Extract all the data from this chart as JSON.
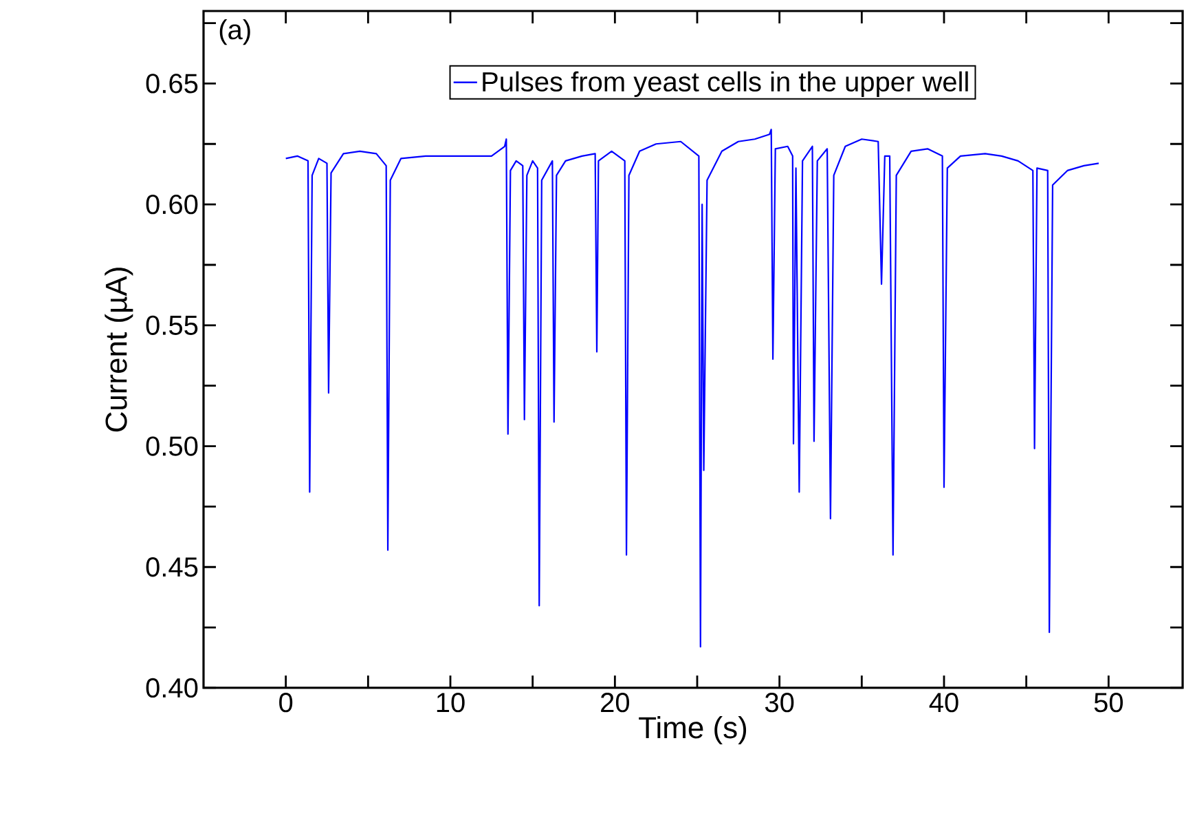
{
  "chart_data": {
    "type": "line",
    "xlabel": "Time (s)",
    "ylabel": "Current (µA)",
    "annotations": [
      "(a)"
    ],
    "xlim": [
      -5,
      54.5
    ],
    "ylim": [
      0.4,
      0.68
    ],
    "xticks": [
      0,
      {
        "value": 5,
        "label": null
      },
      10,
      {
        "value": 15,
        "label": null
      },
      20,
      {
        "value": 25,
        "label": null
      },
      30,
      {
        "value": 35,
        "label": null
      },
      40,
      {
        "value": 45,
        "label": null
      },
      50
    ],
    "yticks": [
      {
        "value": 0.4,
        "label": "0.40"
      },
      {
        "value": 0.425,
        "label": null
      },
      {
        "value": 0.45,
        "label": "0.45"
      },
      {
        "value": 0.475,
        "label": null
      },
      {
        "value": 0.5,
        "label": "0.50"
      },
      {
        "value": 0.525,
        "label": null
      },
      {
        "value": 0.55,
        "label": "0.55"
      },
      {
        "value": 0.575,
        "label": null
      },
      {
        "value": 0.6,
        "label": "0.60"
      },
      {
        "value": 0.625,
        "label": null
      },
      {
        "value": 0.65,
        "label": "0.65"
      },
      {
        "value": 0.675,
        "label": null
      }
    ],
    "grid": false,
    "legend": "top",
    "marker": "none",
    "line_style": "solid",
    "series": [
      {
        "name": "Pulses from yeast cells in  the upper well",
        "color": "#0000ff",
        "x": [
          0,
          0.7,
          1.35,
          1.45,
          1.6,
          2.0,
          2.5,
          2.6,
          2.75,
          3.5,
          4.5,
          5.5,
          6.1,
          6.2,
          6.35,
          7,
          8.5,
          10,
          11.5,
          12.5,
          13.3,
          13.4,
          13.5,
          13.65,
          14.0,
          14.4,
          14.5,
          14.65,
          15.0,
          15.3,
          15.4,
          15.55,
          16.2,
          16.3,
          16.45,
          17,
          18,
          18.8,
          18.9,
          19.0,
          19.8,
          20.6,
          20.7,
          20.85,
          21.5,
          22.5,
          24,
          25.1,
          25.2,
          25.3,
          25.4,
          25.6,
          26.5,
          27.5,
          28.5,
          29.4,
          29.5,
          29.6,
          29.75,
          30.5,
          30.8,
          30.85,
          31.0,
          31.2,
          31.4,
          32.0,
          32.1,
          32.3,
          32.9,
          33.1,
          33.3,
          34,
          35,
          36.0,
          36.2,
          36.4,
          36.7,
          36.9,
          37.1,
          38,
          39,
          39.9,
          40.0,
          40.2,
          41,
          42.5,
          43.5,
          44.5,
          45.4,
          45.5,
          45.65,
          46.3,
          46.4,
          46.6,
          47.5,
          48.5,
          49.4
        ],
        "values": [
          0.619,
          0.62,
          0.618,
          0.481,
          0.612,
          0.619,
          0.617,
          0.522,
          0.613,
          0.621,
          0.622,
          0.621,
          0.616,
          0.457,
          0.61,
          0.619,
          0.62,
          0.62,
          0.62,
          0.62,
          0.624,
          0.627,
          0.505,
          0.614,
          0.618,
          0.616,
          0.511,
          0.612,
          0.618,
          0.615,
          0.434,
          0.61,
          0.618,
          0.51,
          0.612,
          0.618,
          0.62,
          0.621,
          0.539,
          0.618,
          0.622,
          0.618,
          0.455,
          0.612,
          0.622,
          0.625,
          0.626,
          0.62,
          0.417,
          0.6,
          0.49,
          0.61,
          0.622,
          0.626,
          0.627,
          0.629,
          0.631,
          0.536,
          0.623,
          0.624,
          0.62,
          0.501,
          0.615,
          0.481,
          0.618,
          0.624,
          0.502,
          0.618,
          0.623,
          0.47,
          0.612,
          0.624,
          0.627,
          0.626,
          0.567,
          0.62,
          0.62,
          0.455,
          0.612,
          0.622,
          0.623,
          0.62,
          0.483,
          0.615,
          0.62,
          0.621,
          0.62,
          0.618,
          0.614,
          0.499,
          0.615,
          0.614,
          0.423,
          0.608,
          0.614,
          0.616,
          0.617
        ]
      }
    ]
  }
}
